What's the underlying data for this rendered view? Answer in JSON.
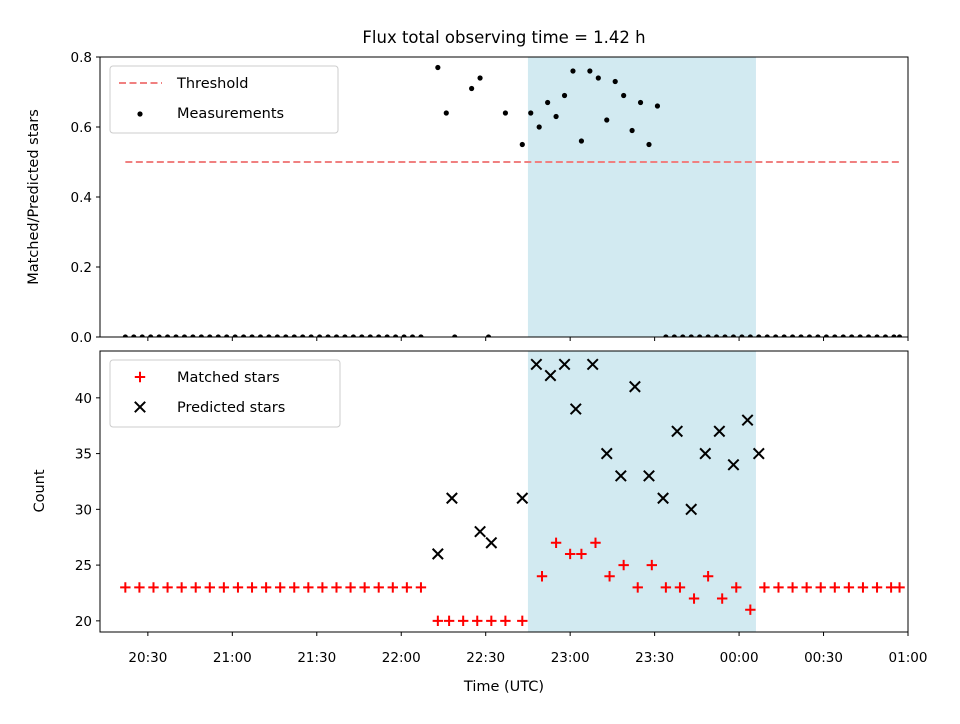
{
  "chart_data": [
    {
      "type": "scatter",
      "title": "Flux total observing time = 1.42 h",
      "ylabel": "Matched/Predicted stars",
      "xlabel": "",
      "ylim": [
        0,
        0.8
      ],
      "yticks": [
        0,
        0.2,
        0.4,
        0.6,
        0.8
      ],
      "ytick_labels": [
        "0.0",
        "0.2",
        "0.4",
        "0.6",
        "0.8"
      ],
      "xlim": [
        "20:13",
        "01:00"
      ],
      "shade": {
        "from": "22:45",
        "to": "00:06",
        "color": "#add8e6"
      },
      "legend_position": "upper-left",
      "threshold": {
        "label": "Threshold",
        "value": 0.5,
        "from": "20:22",
        "to": "00:57",
        "color": "#f08080"
      },
      "series": [
        {
          "name": "Measurements",
          "color": "#000000",
          "marker": "dot",
          "x": [
            "20:22",
            "20:25",
            "20:28",
            "20:31",
            "20:34",
            "20:37",
            "20:40",
            "20:43",
            "20:46",
            "20:49",
            "20:52",
            "20:55",
            "20:58",
            "21:01",
            "21:04",
            "21:07",
            "21:10",
            "21:13",
            "21:16",
            "21:19",
            "21:22",
            "21:25",
            "21:28",
            "21:31",
            "21:34",
            "21:37",
            "21:40",
            "21:43",
            "21:46",
            "21:49",
            "21:52",
            "21:55",
            "21:58",
            "22:01",
            "22:04",
            "22:07",
            "22:13",
            "22:16",
            "22:19",
            "22:25",
            "22:28",
            "22:31",
            "22:37",
            "22:43",
            "22:46",
            "22:49",
            "22:52",
            "22:55",
            "22:58",
            "23:01",
            "23:04",
            "23:07",
            "23:10",
            "23:13",
            "23:16",
            "23:19",
            "23:22",
            "23:25",
            "23:28",
            "23:31",
            "23:34",
            "23:37",
            "23:40",
            "23:43",
            "23:46",
            "23:49",
            "23:52",
            "23:55",
            "23:58",
            "00:01",
            "00:04",
            "00:07",
            "00:10",
            "00:13",
            "00:16",
            "00:19",
            "00:22",
            "00:25",
            "00:28",
            "00:31",
            "00:34",
            "00:37",
            "00:40",
            "00:43",
            "00:46",
            "00:49",
            "00:52",
            "00:55",
            "00:57"
          ],
          "y": [
            0,
            0,
            0,
            0,
            0,
            0,
            0,
            0,
            0,
            0,
            0,
            0,
            0,
            0,
            0,
            0,
            0,
            0,
            0,
            0,
            0,
            0,
            0,
            0,
            0,
            0,
            0,
            0,
            0,
            0,
            0,
            0,
            0,
            0,
            0,
            0,
            0.77,
            0.64,
            0,
            0.71,
            0.74,
            0,
            0.64,
            0.55,
            0.64,
            0.6,
            0.67,
            0.63,
            0.69,
            0.76,
            0.56,
            0.76,
            0.74,
            0.62,
            0.73,
            0.69,
            0.59,
            0.67,
            0.55,
            0.66,
            0,
            0,
            0,
            0,
            0,
            0,
            0,
            0,
            0,
            0,
            0,
            0,
            0,
            0,
            0,
            0,
            0,
            0,
            0,
            0,
            0,
            0,
            0,
            0,
            0,
            0,
            0,
            0,
            0
          ]
        }
      ]
    },
    {
      "type": "scatter",
      "title": "",
      "xlabel": "Time (UTC)",
      "ylabel": "Count",
      "ylim": [
        19,
        44.2
      ],
      "yticks": [
        20,
        25,
        30,
        35,
        40
      ],
      "ytick_labels": [
        "20",
        "25",
        "30",
        "35",
        "40"
      ],
      "xticks": [
        "20:30",
        "21:00",
        "21:30",
        "22:00",
        "22:30",
        "23:00",
        "23:30",
        "00:00",
        "00:30",
        "01:00"
      ],
      "xlim": [
        "20:13",
        "01:00"
      ],
      "shade": {
        "from": "22:45",
        "to": "00:06",
        "color": "#add8e6"
      },
      "legend_position": "upper-left",
      "series": [
        {
          "name": "Matched stars",
          "color": "#ff0000",
          "marker": "plus",
          "x": [
            "20:22",
            "20:27",
            "20:32",
            "20:37",
            "20:42",
            "20:47",
            "20:52",
            "20:57",
            "21:02",
            "21:07",
            "21:12",
            "21:17",
            "21:22",
            "21:27",
            "21:32",
            "21:37",
            "21:42",
            "21:47",
            "21:52",
            "21:57",
            "22:02",
            "22:07",
            "22:13",
            "22:17",
            "22:22",
            "22:27",
            "22:32",
            "22:37",
            "22:43",
            "22:50",
            "22:55",
            "23:00",
            "23:04",
            "23:09",
            "23:14",
            "23:19",
            "23:24",
            "23:29",
            "23:34",
            "23:39",
            "23:44",
            "23:49",
            "23:54",
            "23:59",
            "00:04",
            "00:09",
            "00:14",
            "00:19",
            "00:24",
            "00:29",
            "00:34",
            "00:39",
            "00:44",
            "00:49",
            "00:54",
            "00:57"
          ],
          "y": [
            23,
            23,
            23,
            23,
            23,
            23,
            23,
            23,
            23,
            23,
            23,
            23,
            23,
            23,
            23,
            23,
            23,
            23,
            23,
            23,
            23,
            23,
            20,
            20,
            20,
            20,
            20,
            20,
            20,
            24,
            27,
            26,
            26,
            27,
            24,
            25,
            23,
            25,
            23,
            23,
            22,
            24,
            22,
            23,
            21,
            23,
            23,
            23,
            23,
            23,
            23,
            23,
            23,
            23,
            23,
            23
          ]
        },
        {
          "name": "Predicted stars",
          "color": "#000000",
          "marker": "x",
          "x": [
            "22:13",
            "22:18",
            "22:28",
            "22:32",
            "22:43",
            "22:48",
            "22:53",
            "22:58",
            "23:02",
            "23:08",
            "23:13",
            "23:18",
            "23:23",
            "23:28",
            "23:33",
            "23:38",
            "23:43",
            "23:48",
            "23:53",
            "23:58",
            "00:03",
            "00:07"
          ],
          "y": [
            26,
            31,
            28,
            27,
            31,
            43,
            42,
            43,
            39,
            43,
            35,
            33,
            41,
            33,
            31,
            37,
            30,
            35,
            37,
            34,
            38,
            35
          ]
        }
      ]
    }
  ]
}
